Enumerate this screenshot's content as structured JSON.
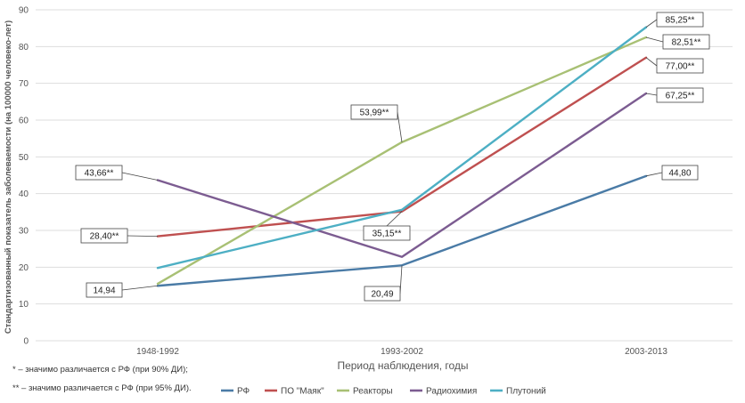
{
  "chart_data": {
    "type": "line",
    "categories": [
      "1948-1992",
      "1993-2002",
      "2003-2013"
    ],
    "xlabel": "Период наблюдения, годы",
    "ylabel": "Стандартизованный показатель заболеваемости (на 100000 человеко-лет)",
    "ylim": [
      0,
      90
    ],
    "yticks": [
      0,
      10,
      20,
      30,
      40,
      50,
      60,
      70,
      80,
      90
    ],
    "grid": true,
    "legend_position": "bottom",
    "series": [
      {
        "name": "РФ",
        "color": "#4a7ba6",
        "values": [
          14.94,
          20.49,
          44.8
        ]
      },
      {
        "name": "ПО \"Маяк\"",
        "color": "#bf5050",
        "values": [
          28.4,
          35.15,
          77.0
        ]
      },
      {
        "name": "Реакторы",
        "color": "#a8c074",
        "values": [
          15.5,
          53.99,
          82.51
        ]
      },
      {
        "name": "Радиохимия",
        "color": "#7c5c91",
        "values": [
          43.66,
          22.8,
          67.25
        ]
      },
      {
        "name": "Плутоний",
        "color": "#4dafc4",
        "values": [
          19.8,
          35.6,
          85.25
        ]
      }
    ],
    "data_labels": [
      {
        "text": "14,94",
        "series": 0,
        "point": 0
      },
      {
        "text": "20,49",
        "series": 0,
        "point": 1
      },
      {
        "text": "44,80",
        "series": 0,
        "point": 2
      },
      {
        "text": "28,40**",
        "series": 1,
        "point": 0
      },
      {
        "text": "35,15**",
        "series": 1,
        "point": 1
      },
      {
        "text": "77,00**",
        "series": 1,
        "point": 2
      },
      {
        "text": "53,99**",
        "series": 2,
        "point": 1
      },
      {
        "text": "82,51**",
        "series": 2,
        "point": 2
      },
      {
        "text": "43,66**",
        "series": 3,
        "point": 0
      },
      {
        "text": "67,25**",
        "series": 3,
        "point": 2
      },
      {
        "text": "85,25**",
        "series": 4,
        "point": 2
      }
    ],
    "notes": [
      "* – значимо различается с РФ (при 90% ДИ);",
      "** – значимо различается с РФ (при 95% ДИ)."
    ]
  }
}
